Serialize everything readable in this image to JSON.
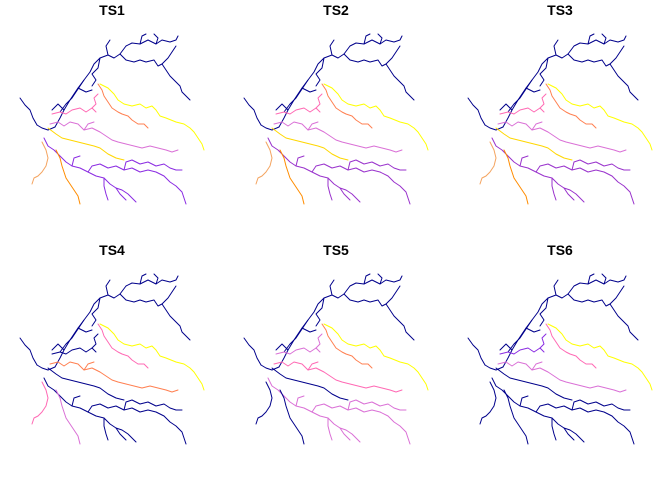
{
  "panels": [
    {
      "title": "TS1",
      "colors": {
        "N": "#00008b",
        "A": "#00008b",
        "B": "#ffff00",
        "C": "#ff7f50",
        "D": "#ff69b4",
        "E": "#da70d6",
        "F": "#ffd700",
        "G": "#8a2be2",
        "H": "#f4a460",
        "I": "#ff8c00"
      }
    },
    {
      "title": "TS2",
      "colors": {
        "N": "#00008b",
        "A": "#00008b",
        "B": "#ffff00",
        "C": "#ff7f50",
        "D": "#ff69b4",
        "E": "#da70d6",
        "F": "#ffd700",
        "G": "#9932cc",
        "H": "#f4a460",
        "I": "#ff8c00"
      }
    },
    {
      "title": "TS3",
      "colors": {
        "N": "#00008b",
        "A": "#00008b",
        "B": "#ffff00",
        "C": "#ff7f50",
        "D": "#ff69b4",
        "E": "#da70d6",
        "F": "#ffd700",
        "G": "#9932cc",
        "H": "#f4a460",
        "I": "#ff8c00"
      }
    },
    {
      "title": "TS4",
      "colors": {
        "N": "#00008b",
        "A": "#00008b",
        "B": "#ffff00",
        "C": "#ff69b4",
        "D": "#00008b",
        "E": "#ff7f50",
        "F": "#00008b",
        "G": "#00008b",
        "H": "#ff69b4",
        "I": "#da70d6"
      }
    },
    {
      "title": "TS5",
      "colors": {
        "N": "#00008b",
        "A": "#00008b",
        "B": "#ffff00",
        "C": "#ff7f50",
        "D": "#da70d6",
        "E": "#ff69b4",
        "F": "#00008b",
        "G": "#da70d6",
        "H": "#00008b",
        "I": "#00008b"
      }
    },
    {
      "title": "TS6",
      "colors": {
        "N": "#00008b",
        "A": "#00008b",
        "B": "#ffff00",
        "C": "#ff69b4",
        "D": "#8a2be2",
        "E": "#da70d6",
        "F": "#00008b",
        "G": "#00008b",
        "H": "#00008b",
        "I": "#00008b"
      }
    }
  ]
}
